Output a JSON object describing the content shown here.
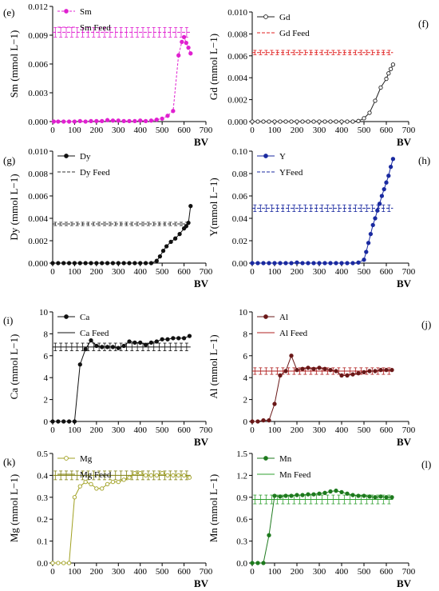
{
  "chart_data": [
    {
      "type": "line",
      "panel_label": "(e)",
      "xlabel": "BV",
      "ylabel": "Sm (mmol L−1)",
      "xlim": [
        0,
        700
      ],
      "ylim": [
        0,
        0.012
      ],
      "xticks": [
        "0",
        "100",
        "200",
        "300",
        "400",
        "500",
        "600",
        "700"
      ],
      "yticks": [
        "0.000",
        "0.003",
        "0.006",
        "0.009",
        "0.012"
      ],
      "legend": [
        "Sm",
        "Sm Feed"
      ],
      "colors": {
        "series": "#e020d0",
        "feed": "#e020d0"
      },
      "series": [
        {
          "name": "Sm",
          "x": [
            5,
            25,
            50,
            75,
            100,
            125,
            150,
            175,
            200,
            225,
            250,
            275,
            300,
            325,
            350,
            375,
            400,
            425,
            450,
            475,
            500,
            525,
            550,
            575,
            590,
            600,
            610,
            620,
            630
          ],
          "y": [
            0,
            0,
            0,
            0,
            0,
            5e-05,
            0,
            5e-05,
            5e-05,
            5e-05,
            0.00015,
            0.0001,
            0.0001,
            5e-05,
            5e-05,
            5e-05,
            0.0001,
            5e-05,
            0.0001,
            0.0002,
            0.0003,
            0.0006,
            0.0011,
            0.0069,
            0.0083,
            0.0088,
            0.0082,
            0.0077,
            0.0071
          ]
        },
        {
          "name": "Sm Feed",
          "x": [
            0,
            630
          ],
          "y": [
            0.0093,
            0.0093
          ],
          "err": 0.0005
        }
      ]
    },
    {
      "type": "line",
      "panel_label": "(f)",
      "xlabel": "BV",
      "ylabel": "Gd (mmol L−1)",
      "xlim": [
        0,
        700
      ],
      "ylim": [
        0,
        0.01
      ],
      "xticks": [
        "0",
        "100",
        "200",
        "300",
        "400",
        "500",
        "600",
        "700"
      ],
      "yticks": [
        "0.000",
        "0.002",
        "0.004",
        "0.006",
        "0.008",
        "0.010"
      ],
      "legend": [
        "Gd",
        "Gd Feed"
      ],
      "colors": {
        "series": "#222222",
        "feed": "#e02020"
      },
      "series": [
        {
          "name": "Gd",
          "x": [
            0,
            25,
            50,
            75,
            100,
            125,
            150,
            175,
            200,
            225,
            250,
            275,
            300,
            325,
            350,
            375,
            400,
            425,
            450,
            475,
            500,
            525,
            550,
            575,
            600,
            610,
            620,
            630
          ],
          "y": [
            0,
            0,
            0,
            0,
            0,
            0,
            0,
            0,
            0,
            0,
            0,
            0,
            0,
            0,
            0,
            0,
            0,
            0,
            0,
            5e-05,
            0.0003,
            0.0008,
            0.0019,
            0.0031,
            0.0039,
            0.0044,
            0.0048,
            0.0052
          ]
        },
        {
          "name": "Gd Feed",
          "x": [
            0,
            630
          ],
          "y": [
            0.0063,
            0.0063
          ],
          "err": 0.0002
        }
      ]
    },
    {
      "type": "line",
      "panel_label": "(g)",
      "xlabel": "BV",
      "ylabel": "Dy (mmol L−1)",
      "xlim": [
        0,
        700
      ],
      "ylim": [
        0,
        0.01
      ],
      "xticks": [
        "0",
        "100",
        "200",
        "300",
        "400",
        "500",
        "600",
        "700"
      ],
      "yticks": [
        "0.000",
        "0.002",
        "0.004",
        "0.006",
        "0.008",
        "0.010"
      ],
      "legend": [
        "Dy",
        "Dy Feed"
      ],
      "colors": {
        "series": "#111111",
        "feed": "#333333"
      },
      "series": [
        {
          "name": "Dy",
          "x": [
            0,
            25,
            50,
            75,
            100,
            125,
            150,
            175,
            200,
            225,
            250,
            275,
            300,
            325,
            350,
            375,
            400,
            425,
            450,
            475,
            490,
            505,
            520,
            540,
            560,
            580,
            600,
            610,
            620,
            630
          ],
          "y": [
            0,
            0,
            0,
            0,
            0,
            0,
            0,
            0,
            0,
            0,
            0,
            0,
            0,
            0,
            0,
            0,
            0,
            0,
            0,
            0.0002,
            0.0006,
            0.0011,
            0.0015,
            0.0019,
            0.0022,
            0.0026,
            0.0031,
            0.0033,
            0.0036,
            0.0051
          ]
        },
        {
          "name": "Dy Feed",
          "x": [
            0,
            630
          ],
          "y": [
            0.0035,
            0.0035
          ],
          "err": 0.00015
        }
      ]
    },
    {
      "type": "line",
      "panel_label": "(h)",
      "xlabel": "BV",
      "ylabel": "Y(mmol L−1)",
      "xlim": [
        0,
        700
      ],
      "ylim": [
        0,
        0.1
      ],
      "xticks": [
        "0",
        "100",
        "200",
        "300",
        "400",
        "500",
        "600",
        "700"
      ],
      "yticks": [
        "0.00",
        "0.02",
        "0.04",
        "0.06",
        "0.08",
        "0.10"
      ],
      "legend": [
        "Y",
        "YFeed"
      ],
      "colors": {
        "series": "#1a2aa0",
        "feed": "#1a2aa0"
      },
      "series": [
        {
          "name": "Y",
          "x": [
            0,
            25,
            50,
            75,
            100,
            125,
            150,
            175,
            200,
            225,
            250,
            275,
            300,
            325,
            350,
            375,
            400,
            425,
            450,
            475,
            500,
            510,
            520,
            530,
            540,
            550,
            560,
            570,
            580,
            590,
            600,
            610,
            620,
            630
          ],
          "y": [
            0,
            0,
            0,
            0,
            0,
            0,
            0,
            0,
            0.0005,
            0,
            0,
            0,
            0,
            0,
            0,
            0,
            0,
            0,
            0,
            0.0005,
            0.003,
            0.01,
            0.018,
            0.026,
            0.034,
            0.04,
            0.047,
            0.053,
            0.06,
            0.066,
            0.072,
            0.078,
            0.086,
            0.093
          ]
        },
        {
          "name": "YFeed",
          "x": [
            0,
            630
          ],
          "y": [
            0.049,
            0.049
          ],
          "err": 0.003
        }
      ]
    },
    {
      "type": "line",
      "panel_label": "(i)",
      "xlabel": "BV",
      "ylabel": "Ca (mmol L−1)",
      "xlim": [
        0,
        700
      ],
      "ylim": [
        0,
        10
      ],
      "xticks": [
        "0",
        "100",
        "200",
        "300",
        "400",
        "500",
        "600",
        "700"
      ],
      "yticks": [
        "0",
        "2",
        "4",
        "6",
        "8",
        "10"
      ],
      "legend": [
        "Ca",
        "Ca Feed"
      ],
      "colors": {
        "series": "#111111",
        "feed": "#111111"
      },
      "series": [
        {
          "name": "Ca",
          "x": [
            0,
            25,
            50,
            75,
            100,
            125,
            150,
            175,
            200,
            225,
            250,
            275,
            300,
            325,
            350,
            375,
            400,
            425,
            450,
            475,
            500,
            525,
            550,
            575,
            600,
            625
          ],
          "y": [
            0,
            0,
            0,
            0,
            0,
            5.2,
            6.6,
            7.4,
            6.9,
            6.8,
            6.8,
            6.8,
            6.7,
            6.9,
            7.3,
            7.2,
            7.2,
            7.0,
            7.2,
            7.3,
            7.5,
            7.5,
            7.6,
            7.6,
            7.6,
            7.8
          ]
        },
        {
          "name": "Ca Feed",
          "x": [
            0,
            630
          ],
          "y": [
            6.8,
            6.8
          ],
          "err": 0.35
        }
      ]
    },
    {
      "type": "line",
      "panel_label": "(j)",
      "xlabel": "BV",
      "ylabel": "Al (mmol L−1)",
      "xlim": [
        0,
        700
      ],
      "ylim": [
        0,
        10
      ],
      "xticks": [
        "0",
        "100",
        "200",
        "300",
        "400",
        "500",
        "600",
        "700"
      ],
      "yticks": [
        "0",
        "2",
        "4",
        "6",
        "8",
        "10"
      ],
      "legend": [
        "Al",
        "Al Feed"
      ],
      "colors": {
        "series": "#6a1818",
        "feed": "#b02020"
      },
      "series": [
        {
          "name": "Al",
          "x": [
            0,
            25,
            50,
            75,
            100,
            125,
            150,
            175,
            200,
            225,
            250,
            275,
            300,
            325,
            350,
            375,
            400,
            425,
            450,
            475,
            500,
            525,
            550,
            575,
            600,
            625
          ],
          "y": [
            0,
            0,
            0.1,
            0.1,
            1.6,
            4.2,
            4.6,
            6.0,
            4.7,
            4.8,
            4.9,
            4.8,
            4.9,
            4.8,
            4.7,
            4.6,
            4.2,
            4.2,
            4.3,
            4.4,
            4.5,
            4.6,
            4.6,
            4.7,
            4.7,
            4.7
          ]
        },
        {
          "name": "Al Feed",
          "x": [
            0,
            630
          ],
          "y": [
            4.6,
            4.6
          ],
          "err": 0.3
        }
      ]
    },
    {
      "type": "line",
      "panel_label": "(k)",
      "xlabel": "BV",
      "ylabel": "Mg (mmol L−1)",
      "xlim": [
        0,
        700
      ],
      "ylim": [
        0,
        0.5
      ],
      "xticks": [
        "0",
        "100",
        "200",
        "300",
        "400",
        "500",
        "600",
        "700"
      ],
      "yticks": [
        "0.0",
        "0.1",
        "0.2",
        "0.3",
        "0.4",
        "0.5"
      ],
      "legend": [
        "Mg",
        "Mg Feed"
      ],
      "colors": {
        "series": "#a0a020",
        "feed": "#808010"
      },
      "series": [
        {
          "name": "Mg",
          "x": [
            0,
            25,
            50,
            75,
            100,
            125,
            150,
            175,
            200,
            225,
            250,
            275,
            300,
            325,
            350,
            375,
            400,
            425,
            450,
            475,
            500,
            525,
            550,
            575,
            600,
            625
          ],
          "y": [
            0,
            0,
            0,
            0,
            0.3,
            0.35,
            0.37,
            0.36,
            0.34,
            0.34,
            0.36,
            0.37,
            0.37,
            0.38,
            0.39,
            0.41,
            0.41,
            0.4,
            0.4,
            0.4,
            0.41,
            0.4,
            0.4,
            0.4,
            0.4,
            0.39
          ]
        },
        {
          "name": "Mg Feed",
          "x": [
            0,
            630
          ],
          "y": [
            0.4,
            0.4
          ],
          "err": 0.02
        }
      ]
    },
    {
      "type": "line",
      "panel_label": "(l)",
      "xlabel": "BV",
      "ylabel": "Mn (mmol L−1)",
      "xlim": [
        0,
        700
      ],
      "ylim": [
        0,
        1.5
      ],
      "xticks": [
        "0",
        "100",
        "200",
        "300",
        "400",
        "500",
        "600",
        "700"
      ],
      "yticks": [
        "0.0",
        "0.3",
        "0.6",
        "0.9",
        "1.2",
        "1.5"
      ],
      "legend": [
        "Mn",
        "Mn Feed"
      ],
      "colors": {
        "series": "#1e7a1e",
        "feed": "#30a030"
      },
      "series": [
        {
          "name": "Mn",
          "x": [
            0,
            25,
            50,
            75,
            100,
            125,
            150,
            175,
            200,
            225,
            250,
            275,
            300,
            325,
            350,
            375,
            400,
            425,
            450,
            475,
            500,
            525,
            550,
            575,
            600,
            625
          ],
          "y": [
            0,
            0,
            0,
            0.38,
            0.92,
            0.91,
            0.92,
            0.92,
            0.93,
            0.93,
            0.94,
            0.94,
            0.95,
            0.96,
            0.98,
            0.99,
            0.97,
            0.95,
            0.93,
            0.92,
            0.92,
            0.91,
            0.9,
            0.91,
            0.9,
            0.9
          ]
        },
        {
          "name": "Mn Feed",
          "x": [
            0,
            630
          ],
          "y": [
            0.87,
            0.87
          ],
          "err": 0.06
        }
      ]
    }
  ]
}
